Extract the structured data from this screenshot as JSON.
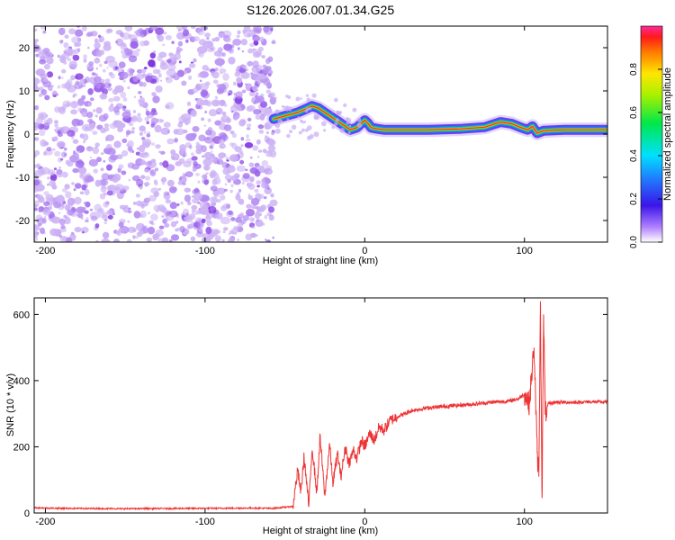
{
  "title": "S126.2026.007.01.34.G25",
  "colors": {
    "axis": "#000000",
    "snr_line": "#ee3333",
    "noise": "#7a2be0",
    "noise_light": "#cdb3f5"
  },
  "chart_data": [
    {
      "type": "heatmap",
      "name": "spectrogram",
      "title": "S126.2026.007.01.34.G25",
      "xlabel": "Height of straight line (km)",
      "ylabel": "Frequency (Hz)",
      "xlim": [
        -207,
        152
      ],
      "ylim": [
        -25,
        25
      ],
      "xticks": [
        -200,
        -100,
        0,
        100
      ],
      "xtick_labels": [
        "-200",
        "-100",
        "0",
        "100"
      ],
      "yticks": [
        -20,
        -10,
        0,
        10,
        20
      ],
      "ytick_labels": [
        "-20",
        "-10",
        "0",
        "10",
        "20"
      ],
      "noise_region_x": [
        -207,
        -57
      ],
      "ridge": {
        "x": [
          -57,
          -52,
          -47,
          -42,
          -37,
          -33,
          -29,
          -25,
          -21,
          -17,
          -13,
          -9,
          -5,
          -2,
          0,
          2,
          4,
          8,
          12,
          20,
          40,
          60,
          75,
          85,
          92,
          98,
          102,
          105,
          108,
          112,
          125,
          140,
          152
        ],
        "y": [
          3.5,
          4.0,
          4.5,
          5.0,
          5.8,
          6.5,
          6.0,
          5.0,
          4.0,
          3.0,
          2.0,
          1.0,
          1.5,
          2.5,
          3.2,
          2.5,
          1.5,
          1.2,
          1.0,
          1.0,
          1.0,
          1.2,
          1.6,
          2.8,
          2.4,
          1.5,
          1.0,
          1.8,
          0.2,
          0.8,
          1.0,
          1.0,
          1.0
        ]
      },
      "colorbar": {
        "label": "Normalized spectral amplitude",
        "range": [
          0,
          1
        ],
        "ticks": [
          0.0,
          0.2,
          0.4,
          0.6,
          0.8
        ],
        "tick_labels": [
          "0.0",
          "0.2",
          "0.4",
          "0.6",
          "0.8"
        ]
      }
    },
    {
      "type": "line",
      "name": "snr",
      "xlabel": "Height of straight line (km)",
      "ylabel": "SNR (10 * v/v)",
      "xlim": [
        -207,
        152
      ],
      "ylim": [
        0,
        650
      ],
      "xticks": [
        -200,
        -100,
        0,
        100
      ],
      "xtick_labels": [
        "-200",
        "-100",
        "0",
        "100"
      ],
      "yticks": [
        0,
        200,
        400,
        600
      ],
      "ytick_labels": [
        "0",
        "200",
        "400",
        "600"
      ],
      "series": [
        {
          "name": "SNR",
          "x": [
            -207,
            -190,
            -150,
            -100,
            -70,
            -58,
            -45,
            -42,
            -40,
            -38,
            -35,
            -33,
            -30,
            -28,
            -25,
            -22,
            -20,
            -17,
            -15,
            -12,
            -10,
            -7,
            -5,
            -2,
            0,
            3,
            6,
            9,
            12,
            16,
            20,
            25,
            30,
            40,
            50,
            60,
            70,
            80,
            90,
            96,
            100,
            103,
            106,
            108,
            109,
            110,
            111,
            112,
            113,
            115,
            120,
            130,
            140,
            152
          ],
          "y": [
            16,
            14,
            13,
            14,
            15,
            14,
            20,
            130,
            60,
            170,
            20,
            200,
            60,
            230,
            50,
            210,
            90,
            180,
            110,
            200,
            150,
            190,
            165,
            220,
            200,
            240,
            220,
            260,
            250,
            280,
            290,
            300,
            310,
            318,
            322,
            326,
            330,
            335,
            338,
            345,
            360,
            330,
            500,
            180,
            110,
            640,
            45,
            600,
            300,
            330,
            335,
            334,
            336,
            335
          ]
        }
      ]
    }
  ]
}
